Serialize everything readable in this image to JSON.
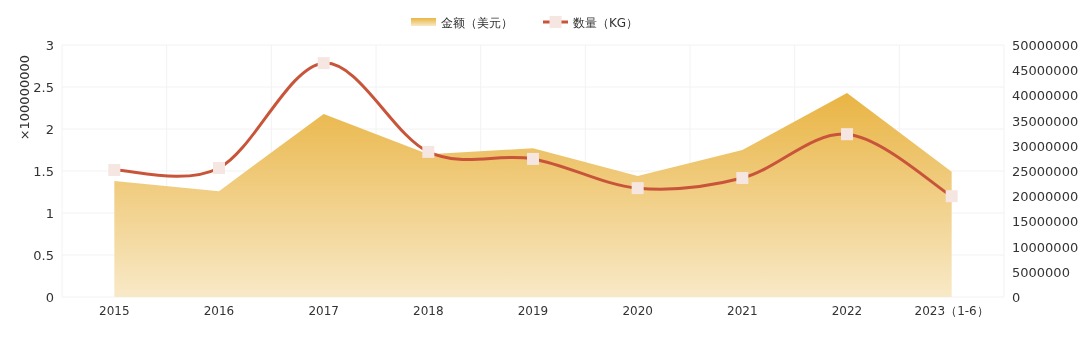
{
  "chart_data": {
    "type": "area",
    "categories": [
      "2015",
      "2016",
      "2017",
      "2018",
      "2019",
      "2020",
      "2021",
      "2022",
      "2023（1-6）"
    ],
    "ylabel": "×100000000",
    "series": [
      {
        "name": "金额（美元）",
        "color": "#e9b443",
        "values": [
          1.38,
          1.26,
          2.18,
          1.7,
          1.77,
          1.44,
          1.75,
          2.43,
          1.49
        ]
      },
      {
        "name": "数量（KG）",
        "type": "line",
        "axis": "y2",
        "color": "#c8553a",
        "marker": "square",
        "values": [
          25200000,
          25600000,
          46400000,
          28800000,
          27400000,
          21600000,
          23600000,
          32300000,
          20000000
        ]
      }
    ],
    "ylim": [
      0,
      3
    ],
    "yticks": [
      0,
      0.5,
      1,
      1.5,
      2,
      2.5,
      3
    ],
    "y2lim": [
      0,
      50000000
    ],
    "y2ticks": [
      0,
      5000000,
      10000000,
      15000000,
      20000000,
      25000000,
      30000000,
      35000000,
      40000000,
      45000000,
      50000000
    ],
    "grid": true,
    "legend": "top"
  }
}
